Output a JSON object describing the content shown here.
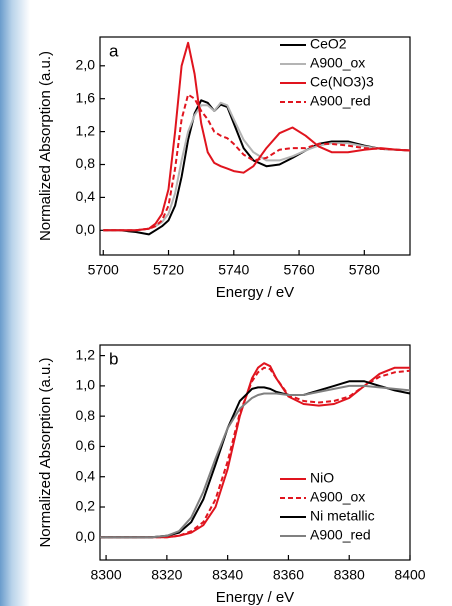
{
  "chart_data": [
    {
      "type": "line",
      "annotation": "a",
      "xlabel": "Energy / eV",
      "ylabel": "Normalized Absorption (a.u.)",
      "x": [
        5700,
        5705,
        5710,
        5714,
        5716,
        5718,
        5720,
        5722,
        5724,
        5726,
        5728,
        5730,
        5732,
        5734,
        5736,
        5738,
        5740,
        5743,
        5746,
        5750,
        5754,
        5758,
        5762,
        5766,
        5770,
        5775,
        5780,
        5785,
        5790,
        5794
      ],
      "series": [
        {
          "name": "CeO2",
          "color": "#000000",
          "dash": "solid",
          "values": [
            0,
            0,
            -0.02,
            -0.05,
            0,
            0.05,
            0.12,
            0.3,
            0.65,
            1.1,
            1.42,
            1.58,
            1.55,
            1.45,
            1.53,
            1.5,
            1.3,
            1.0,
            0.85,
            0.78,
            0.8,
            0.88,
            0.97,
            1.05,
            1.08,
            1.08,
            1.03,
            0.99,
            0.98,
            0.97
          ]
        },
        {
          "name": "A900_ox",
          "color": "#b4b4b4",
          "dash": "solid",
          "values": [
            0,
            0,
            0,
            0.02,
            0.05,
            0.1,
            0.2,
            0.45,
            0.85,
            1.2,
            1.4,
            1.52,
            1.52,
            1.45,
            1.55,
            1.52,
            1.35,
            1.1,
            0.95,
            0.85,
            0.85,
            0.9,
            0.97,
            1.03,
            1.06,
            1.06,
            1.02,
            0.99,
            0.98,
            0.97
          ]
        },
        {
          "name": "Ce(NO3)3",
          "color": "#e0141e",
          "dash": "solid",
          "values": [
            0,
            0,
            0,
            0.02,
            0.08,
            0.2,
            0.5,
            1.2,
            2.0,
            2.28,
            1.9,
            1.3,
            0.95,
            0.82,
            0.78,
            0.75,
            0.72,
            0.7,
            0.78,
            1.0,
            1.18,
            1.25,
            1.15,
            1.02,
            0.95,
            0.95,
            0.98,
            1.0,
            0.98,
            0.97
          ]
        },
        {
          "name": "A900_red",
          "color": "#e0141e",
          "dash": "dashed",
          "values": [
            0,
            0,
            0,
            0.02,
            0.05,
            0.12,
            0.3,
            0.75,
            1.35,
            1.65,
            1.6,
            1.45,
            1.35,
            1.2,
            1.15,
            1.12,
            1.05,
            0.92,
            0.85,
            0.88,
            0.98,
            1.0,
            1.0,
            1.05,
            1.05,
            1.03,
            1.0,
            0.99,
            0.98,
            0.97
          ]
        }
      ],
      "xlim": [
        5699,
        5794
      ],
      "xticks": [
        5700,
        5720,
        5740,
        5760,
        5780
      ],
      "ylim": [
        -0.3,
        2.35
      ],
      "yticks": [
        {
          "value": 0,
          "label": "0,0"
        },
        {
          "value": 0.4,
          "label": "0,4"
        },
        {
          "value": 0.8,
          "label": "0,8"
        },
        {
          "value": 1.2,
          "label": "1,2"
        },
        {
          "value": 1.6,
          "label": "1,6"
        },
        {
          "value": 2.0,
          "label": "2,0"
        }
      ],
      "legend": "top-right"
    },
    {
      "type": "line",
      "annotation": "b",
      "xlabel": "Energy / eV",
      "ylabel": "Normalized Absorption (a.u.)",
      "x": [
        8298,
        8305,
        8310,
        8315,
        8320,
        8324,
        8328,
        8332,
        8336,
        8340,
        8344,
        8348,
        8350,
        8352,
        8354,
        8356,
        8360,
        8365,
        8370,
        8375,
        8380,
        8385,
        8390,
        8395,
        8400
      ],
      "series": [
        {
          "name": "NiO",
          "color": "#e0141e",
          "dash": "solid",
          "values": [
            0,
            0,
            0,
            0,
            0,
            0.01,
            0.03,
            0.08,
            0.2,
            0.45,
            0.8,
            1.05,
            1.12,
            1.15,
            1.13,
            1.05,
            0.93,
            0.88,
            0.87,
            0.88,
            0.92,
            1.0,
            1.08,
            1.12,
            1.12
          ]
        },
        {
          "name": "A900_ox",
          "color": "#e0141e",
          "dash": "dashed",
          "values": [
            0,
            0,
            0,
            0,
            0,
            0.01,
            0.04,
            0.1,
            0.25,
            0.5,
            0.82,
            1.03,
            1.09,
            1.12,
            1.11,
            1.05,
            0.94,
            0.9,
            0.89,
            0.9,
            0.93,
            1.0,
            1.06,
            1.09,
            1.1
          ]
        },
        {
          "name": "Ni metallic",
          "color": "#000000",
          "dash": "solid",
          "values": [
            0,
            0,
            0,
            0,
            0.01,
            0.03,
            0.1,
            0.25,
            0.48,
            0.72,
            0.9,
            0.98,
            0.99,
            0.99,
            0.98,
            0.96,
            0.94,
            0.94,
            0.97,
            1.0,
            1.03,
            1.03,
            1.0,
            0.97,
            0.95
          ]
        },
        {
          "name": "A900_red",
          "color": "#808080",
          "dash": "solid",
          "values": [
            0,
            0,
            0,
            0,
            0.01,
            0.04,
            0.13,
            0.3,
            0.52,
            0.72,
            0.85,
            0.92,
            0.94,
            0.95,
            0.95,
            0.95,
            0.94,
            0.94,
            0.96,
            0.98,
            1.0,
            1.0,
            0.99,
            0.98,
            0.97
          ]
        }
      ],
      "xlim": [
        8298,
        8400
      ],
      "xticks": [
        8300,
        8320,
        8340,
        8360,
        8380,
        8400
      ],
      "ylim": [
        -0.15,
        1.27
      ],
      "yticks": [
        {
          "value": 0,
          "label": "0,0"
        },
        {
          "value": 0.2,
          "label": "0,2"
        },
        {
          "value": 0.4,
          "label": "0,4"
        },
        {
          "value": 0.6,
          "label": "0,6"
        },
        {
          "value": 0.8,
          "label": "0,8"
        },
        {
          "value": 1.0,
          "label": "1,0"
        },
        {
          "value": 1.2,
          "label": "1,2"
        }
      ],
      "legend": "bottom-right"
    }
  ]
}
